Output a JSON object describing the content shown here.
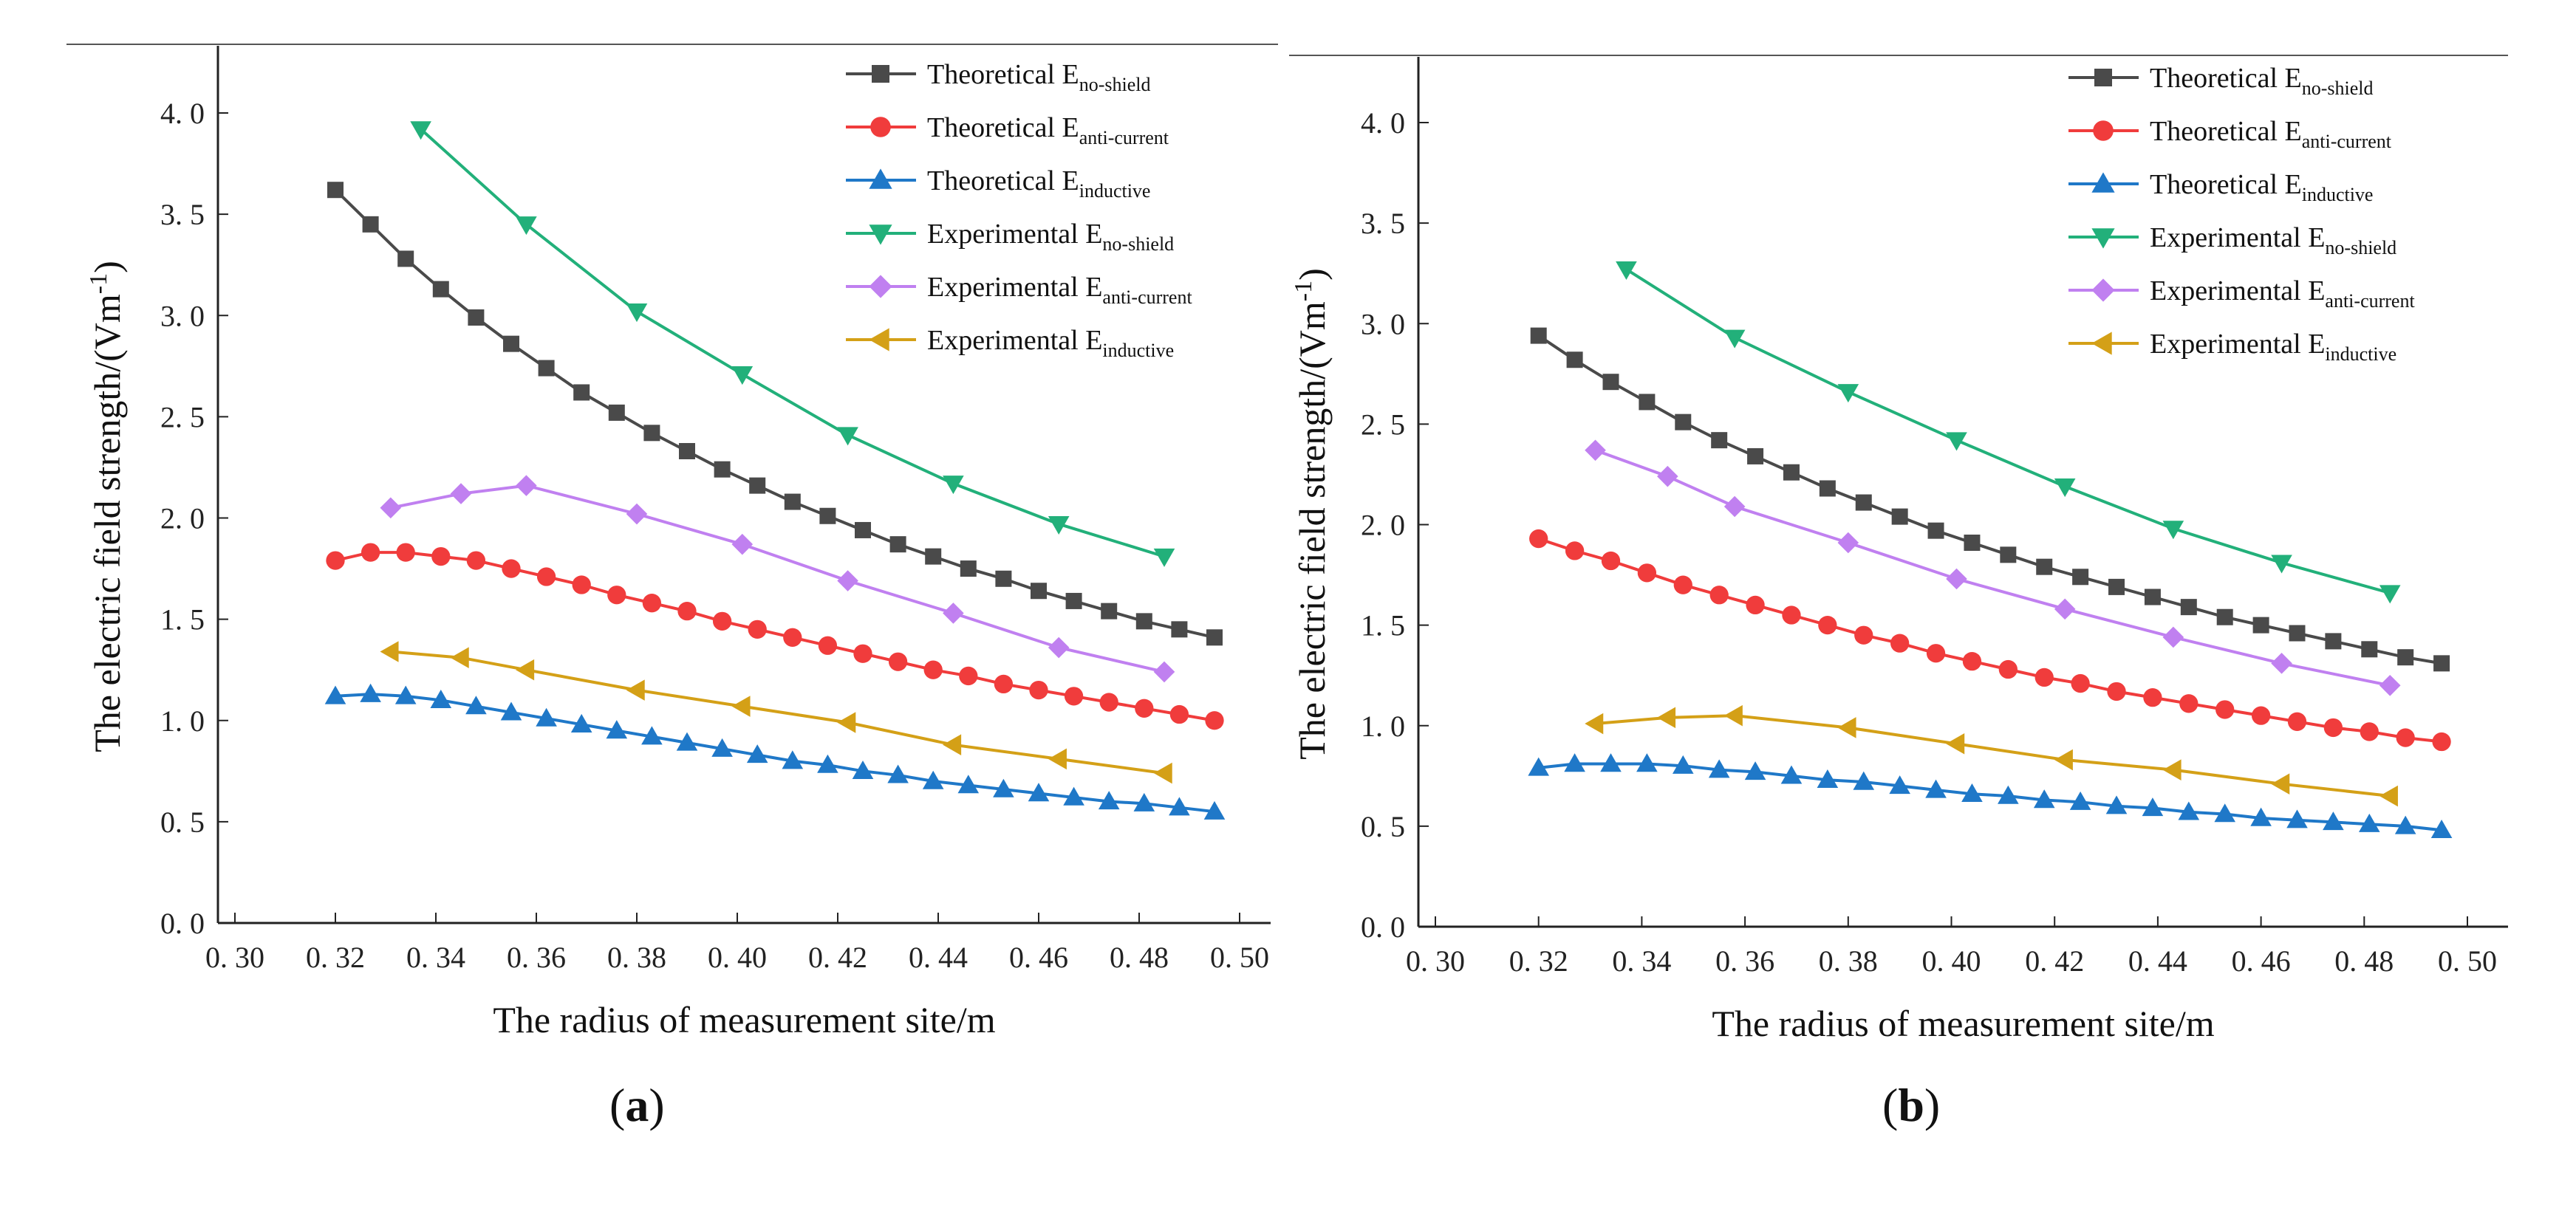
{
  "chart_data": [
    {
      "type": "line",
      "panel": "(a)",
      "panel_letter": "a",
      "xlabel": "The radius of measurement site/m",
      "ylabel": "The electric field strength/(Vm",
      "ylabel_sup": "-1",
      "ylabel_end": ")",
      "xlim": [
        0.3,
        0.5
      ],
      "ylim": [
        0.0,
        4.2
      ],
      "xticks": [
        0.3,
        0.32,
        0.34,
        0.36,
        0.38,
        0.4,
        0.42,
        0.44,
        0.46,
        0.48,
        0.5
      ],
      "xtick_labels": [
        "0. 30",
        "0. 32",
        "0. 34",
        "0. 36",
        "0. 38",
        "0. 40",
        "0. 42",
        "0. 44",
        "0. 46",
        "0. 48",
        "0. 50"
      ],
      "yticks": [
        0.0,
        0.5,
        1.0,
        1.5,
        2.0,
        2.5,
        3.0,
        3.5,
        4.0
      ],
      "ytick_labels": [
        "0. 0",
        "0. 5",
        "1. 0",
        "1. 5",
        "2. 0",
        "2. 5",
        "3. 0",
        "3. 5",
        "4. 0"
      ],
      "legend_position": "top-right",
      "series": [
        {
          "name": "Theoretical E",
          "sub": "no-shield",
          "color": "#4a4a4a",
          "marker": "square",
          "x": [
            0.32,
            0.327,
            0.334,
            0.341,
            0.348,
            0.355,
            0.362,
            0.369,
            0.376,
            0.383,
            0.39,
            0.397,
            0.404,
            0.411,
            0.418,
            0.425,
            0.432,
            0.439,
            0.446,
            0.453,
            0.46,
            0.467,
            0.474,
            0.481,
            0.488,
            0.495
          ],
          "y": [
            3.62,
            3.45,
            3.28,
            3.13,
            2.99,
            2.86,
            2.74,
            2.62,
            2.52,
            2.42,
            2.33,
            2.24,
            2.16,
            2.08,
            2.01,
            1.94,
            1.87,
            1.81,
            1.75,
            1.7,
            1.64,
            1.59,
            1.54,
            1.49,
            1.45,
            1.41
          ]
        },
        {
          "name": "Theoretical E",
          "sub": "anti-current",
          "color": "#f03c3c",
          "marker": "circle",
          "x": [
            0.32,
            0.327,
            0.334,
            0.341,
            0.348,
            0.355,
            0.362,
            0.369,
            0.376,
            0.383,
            0.39,
            0.397,
            0.404,
            0.411,
            0.418,
            0.425,
            0.432,
            0.439,
            0.446,
            0.453,
            0.46,
            0.467,
            0.474,
            0.481,
            0.488,
            0.495
          ],
          "y": [
            1.79,
            1.83,
            1.83,
            1.81,
            1.79,
            1.75,
            1.71,
            1.67,
            1.62,
            1.58,
            1.54,
            1.49,
            1.45,
            1.41,
            1.37,
            1.33,
            1.29,
            1.25,
            1.22,
            1.18,
            1.15,
            1.12,
            1.09,
            1.06,
            1.03,
            1.0
          ]
        },
        {
          "name": "Theoretical E",
          "sub": "inductive",
          "color": "#1f78c8",
          "marker": "triangle-up",
          "x": [
            0.32,
            0.327,
            0.334,
            0.341,
            0.348,
            0.355,
            0.362,
            0.369,
            0.376,
            0.383,
            0.39,
            0.397,
            0.404,
            0.411,
            0.418,
            0.425,
            0.432,
            0.439,
            0.446,
            0.453,
            0.46,
            0.467,
            0.474,
            0.481,
            0.488,
            0.495
          ],
          "y": [
            1.12,
            1.13,
            1.12,
            1.1,
            1.07,
            1.04,
            1.01,
            0.98,
            0.95,
            0.92,
            0.89,
            0.86,
            0.83,
            0.8,
            0.78,
            0.75,
            0.73,
            0.7,
            0.68,
            0.66,
            0.64,
            0.62,
            0.6,
            0.59,
            0.57,
            0.55
          ]
        },
        {
          "name": "Experimental E",
          "sub": "no-shield",
          "color": "#22b07a",
          "marker": "triangle-down",
          "x": [
            0.337,
            0.358,
            0.38,
            0.401,
            0.422,
            0.443,
            0.464,
            0.485
          ],
          "y": [
            3.92,
            3.45,
            3.02,
            2.71,
            2.41,
            2.17,
            1.97,
            1.81
          ]
        },
        {
          "name": "Experimental E",
          "sub": "anti-current",
          "color": "#c080f0",
          "marker": "diamond",
          "x": [
            0.331,
            0.345,
            0.358,
            0.38,
            0.401,
            0.422,
            0.443,
            0.464,
            0.485
          ],
          "y": [
            2.05,
            2.12,
            2.16,
            2.02,
            1.87,
            1.69,
            1.53,
            1.36,
            1.24
          ]
        },
        {
          "name": "Experimental E",
          "sub": "inductive",
          "color": "#d4a017",
          "marker": "triangle-left",
          "x": [
            0.331,
            0.345,
            0.358,
            0.38,
            0.401,
            0.422,
            0.443,
            0.464,
            0.485
          ],
          "y": [
            1.34,
            1.31,
            1.25,
            1.15,
            1.07,
            0.99,
            0.88,
            0.81,
            0.74
          ]
        }
      ]
    },
    {
      "type": "line",
      "panel": "(b)",
      "panel_letter": "b",
      "xlabel": "The radius of measurement site/m",
      "ylabel": "The electric field strength/(Vm",
      "ylabel_sup": "-1",
      "ylabel_end": ")",
      "xlim": [
        0.3,
        0.5
      ],
      "ylim": [
        0.0,
        4.2
      ],
      "xticks": [
        0.3,
        0.32,
        0.34,
        0.36,
        0.38,
        0.4,
        0.42,
        0.44,
        0.46,
        0.48,
        0.5
      ],
      "xtick_labels": [
        "0. 30",
        "0. 32",
        "0. 34",
        "0. 36",
        "0. 38",
        "0. 40",
        "0. 42",
        "0. 44",
        "0. 46",
        "0. 48",
        "0. 50"
      ],
      "yticks": [
        0.0,
        0.5,
        1.0,
        1.5,
        2.0,
        2.5,
        3.0,
        3.5,
        4.0
      ],
      "ytick_labels": [
        "0. 0",
        "0. 5",
        "1. 0",
        "1. 5",
        "2. 0",
        "2. 5",
        "3. 0",
        "3. 5",
        "4. 0"
      ],
      "legend_position": "top-right",
      "series": [
        {
          "name": "Theoretical E",
          "sub": "no-shield",
          "color": "#4a4a4a",
          "marker": "square",
          "x": [
            0.32,
            0.327,
            0.334,
            0.341,
            0.348,
            0.355,
            0.362,
            0.369,
            0.376,
            0.383,
            0.39,
            0.397,
            0.404,
            0.411,
            0.418,
            0.425,
            0.432,
            0.439,
            0.446,
            0.453,
            0.46,
            0.467,
            0.474,
            0.481,
            0.488,
            0.495
          ],
          "y": [
            2.94,
            2.82,
            2.71,
            2.61,
            2.51,
            2.42,
            2.34,
            2.26,
            2.18,
            2.11,
            2.04,
            1.97,
            1.91,
            1.85,
            1.79,
            1.74,
            1.69,
            1.64,
            1.59,
            1.54,
            1.5,
            1.46,
            1.42,
            1.38,
            1.34,
            1.31
          ]
        },
        {
          "name": "Theoretical E",
          "sub": "anti-current",
          "color": "#f03c3c",
          "marker": "circle",
          "x": [
            0.32,
            0.327,
            0.334,
            0.341,
            0.348,
            0.355,
            0.362,
            0.369,
            0.376,
            0.383,
            0.39,
            0.397,
            0.404,
            0.411,
            0.418,
            0.425,
            0.432,
            0.439,
            0.446,
            0.453,
            0.46,
            0.467,
            0.474,
            0.481,
            0.488,
            0.495
          ],
          "y": [
            1.93,
            1.87,
            1.82,
            1.76,
            1.7,
            1.65,
            1.6,
            1.55,
            1.5,
            1.45,
            1.41,
            1.36,
            1.32,
            1.28,
            1.24,
            1.21,
            1.17,
            1.14,
            1.11,
            1.08,
            1.05,
            1.02,
            0.99,
            0.97,
            0.94,
            0.92
          ]
        },
        {
          "name": "Theoretical E",
          "sub": "inductive",
          "color": "#1f78c8",
          "marker": "triangle-up",
          "x": [
            0.32,
            0.327,
            0.334,
            0.341,
            0.348,
            0.355,
            0.362,
            0.369,
            0.376,
            0.383,
            0.39,
            0.397,
            0.404,
            0.411,
            0.418,
            0.425,
            0.432,
            0.439,
            0.446,
            0.453,
            0.46,
            0.467,
            0.474,
            0.481,
            0.488,
            0.495
          ],
          "y": [
            0.79,
            0.81,
            0.81,
            0.81,
            0.8,
            0.78,
            0.77,
            0.75,
            0.73,
            0.72,
            0.7,
            0.68,
            0.66,
            0.65,
            0.63,
            0.62,
            0.6,
            0.59,
            0.57,
            0.56,
            0.54,
            0.53,
            0.52,
            0.51,
            0.5,
            0.48
          ]
        },
        {
          "name": "Experimental E",
          "sub": "no-shield",
          "color": "#22b07a",
          "marker": "triangle-down",
          "x": [
            0.337,
            0.358,
            0.38,
            0.401,
            0.422,
            0.443,
            0.464,
            0.485
          ],
          "y": [
            3.27,
            2.93,
            2.66,
            2.42,
            2.19,
            1.98,
            1.81,
            1.66
          ]
        },
        {
          "name": "Experimental E",
          "sub": "anti-current",
          "color": "#c080f0",
          "marker": "diamond",
          "x": [
            0.331,
            0.345,
            0.358,
            0.38,
            0.401,
            0.422,
            0.443,
            0.464,
            0.485
          ],
          "y": [
            2.37,
            2.24,
            2.09,
            1.91,
            1.73,
            1.58,
            1.44,
            1.31,
            1.2
          ]
        },
        {
          "name": "Experimental E",
          "sub": "inductive",
          "color": "#d4a017",
          "marker": "triangle-left",
          "x": [
            0.331,
            0.345,
            0.358,
            0.38,
            0.401,
            0.422,
            0.443,
            0.464,
            0.485
          ],
          "y": [
            1.01,
            1.04,
            1.05,
            0.99,
            0.91,
            0.83,
            0.78,
            0.71,
            0.65
          ]
        }
      ]
    }
  ]
}
